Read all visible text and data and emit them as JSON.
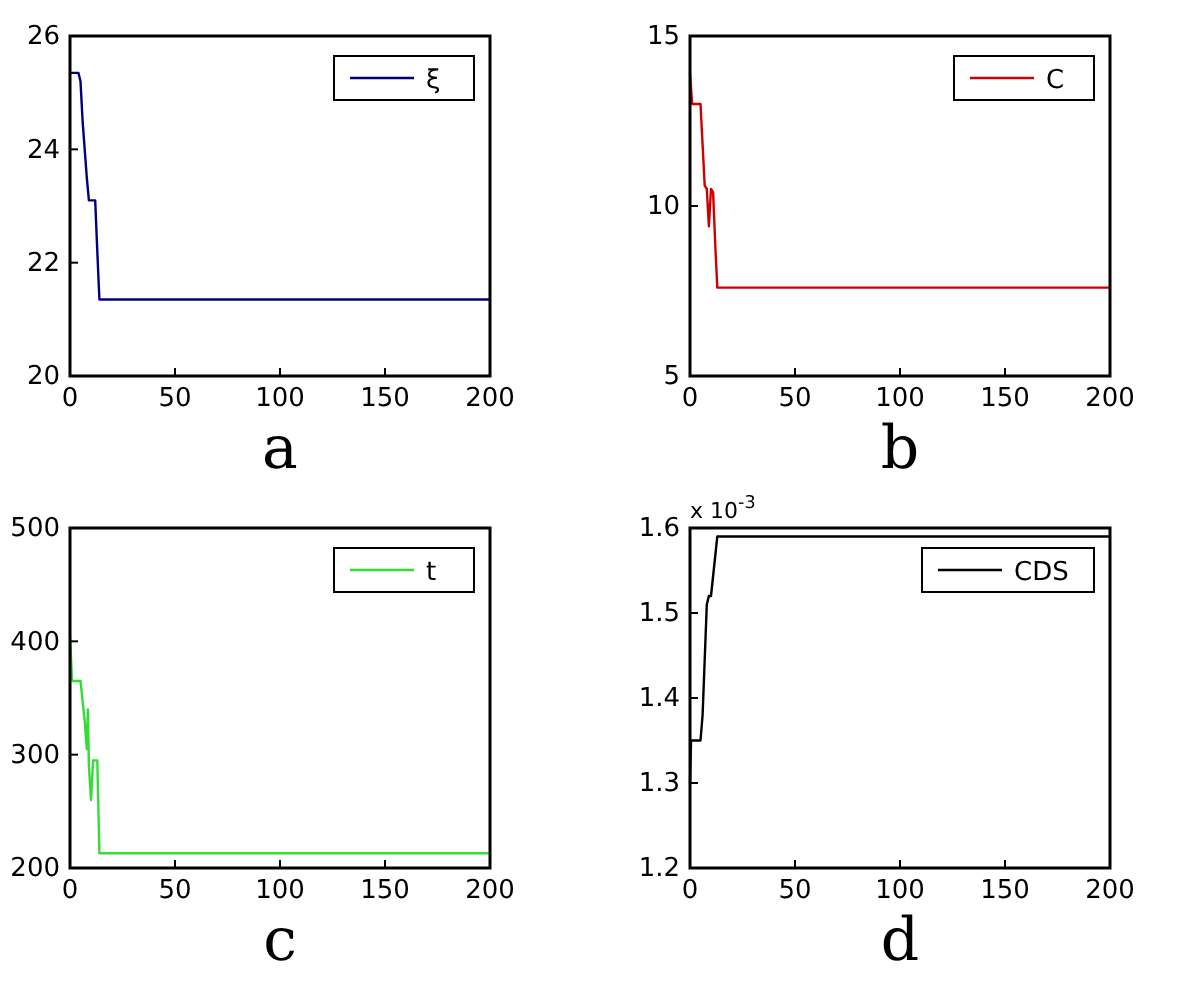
{
  "chart_data": [
    {
      "type": "line",
      "xlabel": "a",
      "xlim": [
        0,
        200
      ],
      "ylim": [
        20,
        26
      ],
      "xticks": [
        0,
        50,
        100,
        150,
        200
      ],
      "yticks": [
        20,
        22,
        24,
        26
      ],
      "legend": "top right",
      "grid": false,
      "series": [
        {
          "name": "ξ",
          "color": "#00007f",
          "x": [
            0,
            4,
            5,
            6,
            7,
            8,
            9,
            12,
            13,
            14,
            200
          ],
          "values": [
            25.35,
            25.35,
            25.2,
            24.5,
            24.0,
            23.5,
            23.1,
            23.1,
            22.2,
            21.35,
            21.35
          ]
        }
      ]
    },
    {
      "type": "line",
      "xlabel": "b",
      "xlim": [
        0,
        200
      ],
      "ylim": [
        5,
        15
      ],
      "xticks": [
        0,
        50,
        100,
        150,
        200
      ],
      "yticks": [
        5,
        10,
        15
      ],
      "legend": "top right",
      "grid": false,
      "series": [
        {
          "name": "C",
          "color": "#cc0000",
          "x": [
            0,
            1,
            2,
            5,
            6,
            7,
            8,
            9,
            10,
            11,
            12,
            13,
            200
          ],
          "values": [
            13.9,
            13.0,
            13.0,
            13.0,
            11.8,
            10.6,
            10.5,
            9.4,
            10.5,
            10.4,
            8.9,
            7.6,
            7.6
          ]
        }
      ]
    },
    {
      "type": "line",
      "xlabel": "c",
      "xlim": [
        0,
        200
      ],
      "ylim": [
        200,
        500
      ],
      "xticks": [
        0,
        50,
        100,
        150,
        200
      ],
      "yticks": [
        200,
        300,
        400,
        500
      ],
      "legend": "top right",
      "grid": false,
      "series": [
        {
          "name": "t",
          "color": "#33dd33",
          "x": [
            0,
            1,
            5,
            7,
            8,
            8.5,
            9,
            10,
            11,
            13,
            14,
            200
          ],
          "values": [
            405,
            365,
            365,
            330,
            305,
            340,
            290,
            260,
            295,
            295,
            213,
            213
          ]
        }
      ]
    },
    {
      "type": "line",
      "xlabel": "d",
      "xlim": [
        0,
        200
      ],
      "ylim": [
        1.2,
        1.6
      ],
      "xticks": [
        0,
        50,
        100,
        150,
        200
      ],
      "yticks": [
        1.2,
        1.3,
        1.4,
        1.5,
        1.6
      ],
      "legend": "top right",
      "grid": false,
      "annotations": [
        "x 10$^{-3}$"
      ],
      "series": [
        {
          "name": "CDS",
          "color": "#000000",
          "x": [
            0,
            0.5,
            1,
            5,
            6,
            8,
            9,
            10,
            13,
            200
          ],
          "values": [
            1.3,
            1.35,
            1.35,
            1.35,
            1.38,
            1.51,
            1.52,
            1.52,
            1.59,
            1.59
          ]
        }
      ]
    }
  ]
}
